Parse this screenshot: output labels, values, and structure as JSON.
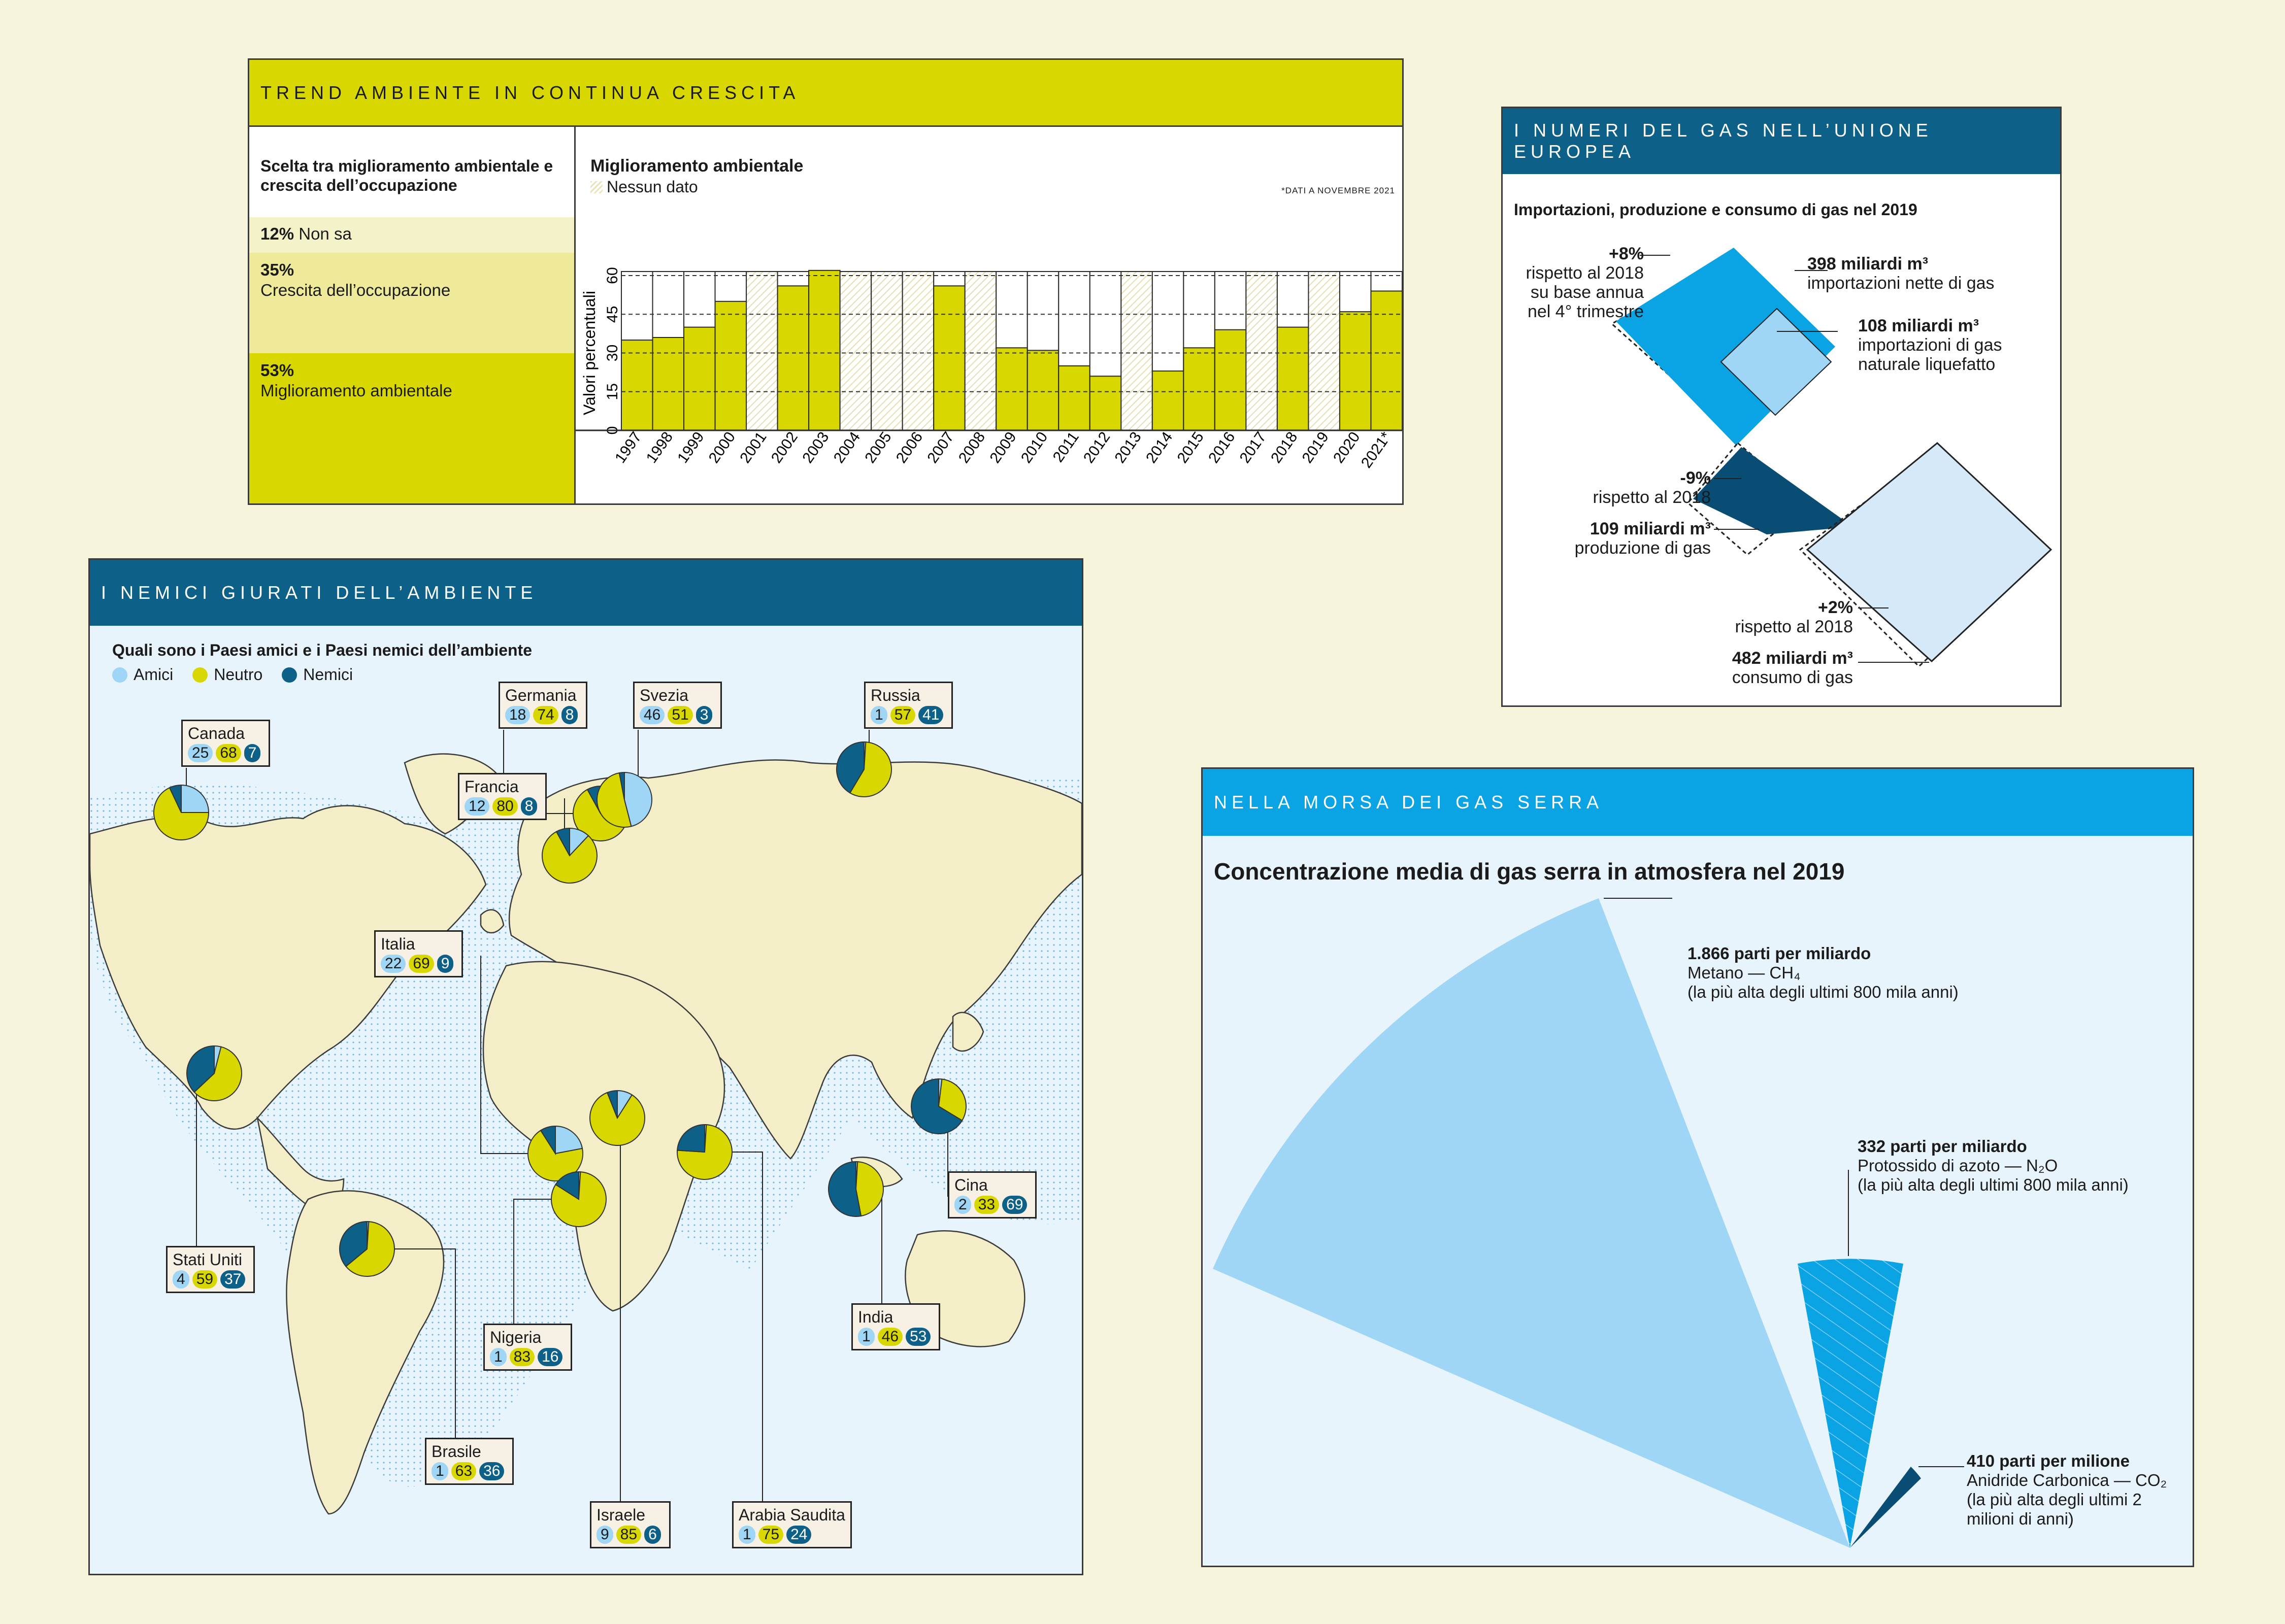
{
  "colors": {
    "yellow": "#d8d800",
    "lightblue": "#9fd5f5",
    "teal": "#0d6088",
    "navy": "#0a4d74",
    "gasBlue": "#0aa3e4"
  },
  "trend": {
    "header": "TREND AMBIENTE IN CONTINUA CRESCITA",
    "left_title": "Scelta tra miglioramento ambientale e crescita dell’occupazione",
    "items": [
      {
        "pct": "12%",
        "label": "Non sa"
      },
      {
        "pct": "35%",
        "label": "Crescita dell’occupazione"
      },
      {
        "pct": "53%",
        "label": "Miglioramento ambientale"
      }
    ],
    "chart_title": "Miglioramento ambientale",
    "legend_nodata": "Nessun dato",
    "footnote": "*DATI A NOVEMBRE 2021",
    "ylabel": "Valori percentuali"
  },
  "chart_data": {
    "type": "bar",
    "title": "Miglioramento ambientale",
    "ylabel": "Valori percentuali",
    "ylim": [
      0,
      60
    ],
    "yticks": [
      0,
      15,
      30,
      45,
      60
    ],
    "categories": [
      "1997",
      "1998",
      "1999",
      "2000",
      "2001",
      "2002",
      "2003",
      "2004",
      "2005",
      "2006",
      "2007",
      "2008",
      "2009",
      "2010",
      "2011",
      "2012",
      "2013",
      "2014",
      "2015",
      "2016",
      "2017",
      "2018",
      "2019",
      "2020",
      "2021*"
    ],
    "values": [
      35,
      36,
      40,
      50,
      null,
      56,
      62,
      null,
      null,
      null,
      56,
      null,
      32,
      31,
      25,
      21,
      null,
      23,
      32,
      39,
      null,
      40,
      null,
      46,
      54
    ]
  },
  "gas_eu": {
    "header": "I NUMERI DEL GAS NELL’UNIONE EUROPEA",
    "subtitle": "Importazioni, produzione e consumo di gas nel 2019",
    "imp_pct": "+8%",
    "imp_pct_note": "rispetto al 2018 su base annua nel 4° trimestre",
    "imp_value": "398 miliardi m³",
    "imp_label": "importazioni nette di gas",
    "lng_value": "108 miliardi m³",
    "lng_label": "importazioni di gas naturale liquefatto",
    "prod_pct": "-9%",
    "prod_pct_note": "rispetto al 2018",
    "prod_value": "109 miliardi m³",
    "prod_label": "produzione di gas",
    "cons_pct": "+2%",
    "cons_pct_note": "rispetto al 2018",
    "cons_value": "482 miliardi m³",
    "cons_label": "consumo di gas"
  },
  "map": {
    "header": "I NEMICI GIURATI DELL’AMBIENTE",
    "subtitle": "Quali sono i Paesi amici e i Paesi nemici dell’ambiente",
    "legend": [
      "Amici",
      "Neutro",
      "Nemici"
    ],
    "countries": [
      {
        "name": "Canada",
        "amici": 25,
        "neutro": 68,
        "nemici": 7
      },
      {
        "name": "Germania",
        "amici": 18,
        "neutro": 74,
        "nemici": 8
      },
      {
        "name": "Svezia",
        "amici": 46,
        "neutro": 51,
        "nemici": 3
      },
      {
        "name": "Russia",
        "amici": 1,
        "neutro": 57,
        "nemici": 41
      },
      {
        "name": "Francia",
        "amici": 12,
        "neutro": 80,
        "nemici": 8
      },
      {
        "name": "Italia",
        "amici": 22,
        "neutro": 69,
        "nemici": 9
      },
      {
        "name": "Stati Uniti",
        "amici": 4,
        "neutro": 59,
        "nemici": 37
      },
      {
        "name": "Cina",
        "amici": 2,
        "neutro": 33,
        "nemici": 69
      },
      {
        "name": "India",
        "amici": 1,
        "neutro": 46,
        "nemici": 53
      },
      {
        "name": "Nigeria",
        "amici": 1,
        "neutro": 83,
        "nemici": 16
      },
      {
        "name": "Brasile",
        "amici": 1,
        "neutro": 63,
        "nemici": 36
      },
      {
        "name": "Israele",
        "amici": 9,
        "neutro": 85,
        "nemici": 6
      },
      {
        "name": "Arabia Saudita",
        "amici": 1,
        "neutro": 75,
        "nemici": 24
      }
    ]
  },
  "serra": {
    "header": "NELLA MORSA DEI GAS SERRA",
    "title": "Concentrazione media di gas serra in atmosfera nel 2019",
    "items": [
      {
        "value": "1.866 parti per miliardo",
        "name": "Metano — CH₄",
        "note": "(la più alta degli ultimi 800 mila anni)"
      },
      {
        "value": "332 parti per miliardo",
        "name": "Protossido di azoto — N₂O",
        "note": "(la più alta degli ultimi 800 mila anni)"
      },
      {
        "value": "410 parti per milione",
        "name": "Anidride Carbonica — CO₂",
        "note": "(la più alta degli ultimi 2 milioni di anni)"
      }
    ]
  }
}
